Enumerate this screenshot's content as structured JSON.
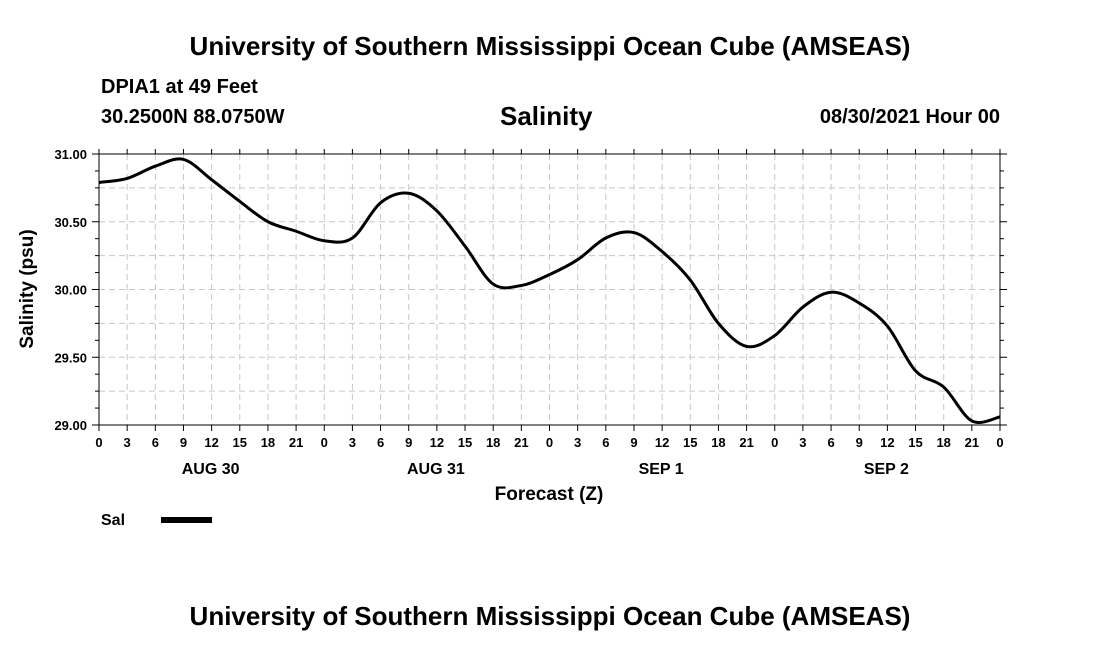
{
  "header": {
    "title": "University of Southern Mississippi Ocean Cube (AMSEAS)",
    "station": "DPIA1 at 49 Feet",
    "coords": "30.2500N  88.0750W",
    "variable": "Salinity",
    "run_time": "08/30/2021 Hour 00"
  },
  "footer": {
    "title": "University of Southern Mississippi Ocean Cube (AMSEAS)"
  },
  "legend": {
    "label": "Sal"
  },
  "colors": {
    "line": "#000000",
    "grid": "#c8c8c8"
  },
  "chart_data": {
    "type": "line",
    "title": "Salinity",
    "xlabel": "Forecast (Z)",
    "ylabel": "Salinity (psu)",
    "ylim": [
      29.0,
      31.0
    ],
    "yticks": [
      "29.00",
      "29.50",
      "30.00",
      "30.50",
      "31.00"
    ],
    "xlim_hours": [
      0,
      96
    ],
    "xticks_hours": [
      0,
      3,
      6,
      9,
      12,
      15,
      18,
      21,
      24,
      27,
      30,
      33,
      36,
      39,
      42,
      45,
      48,
      51,
      54,
      57,
      60,
      63,
      66,
      69,
      72,
      75,
      78,
      81,
      84,
      87,
      90,
      93,
      96
    ],
    "xtick_labels": [
      "0",
      "3",
      "6",
      "9",
      "12",
      "15",
      "18",
      "21",
      "0",
      "3",
      "6",
      "9",
      "12",
      "15",
      "18",
      "21",
      "0",
      "3",
      "6",
      "9",
      "12",
      "15",
      "18",
      "21",
      "0",
      "3",
      "6",
      "9",
      "12",
      "15",
      "18",
      "21",
      "0"
    ],
    "day_labels": [
      {
        "label": "AUG 30",
        "hour": 12
      },
      {
        "label": "AUG 31",
        "hour": 36
      },
      {
        "label": "SEP 1",
        "hour": 60
      },
      {
        "label": "SEP 2",
        "hour": 84
      }
    ],
    "grid": true,
    "series": [
      {
        "name": "Sal",
        "x": [
          0,
          3,
          6,
          9,
          12,
          15,
          18,
          21,
          24,
          27,
          30,
          33,
          36,
          39,
          42,
          45,
          48,
          51,
          54,
          57,
          60,
          63,
          66,
          69,
          72,
          75,
          78,
          81,
          84,
          87,
          90,
          93,
          96
        ],
        "values": [
          30.79,
          30.82,
          30.91,
          30.96,
          30.81,
          30.65,
          30.5,
          30.43,
          30.36,
          30.38,
          30.64,
          30.71,
          30.58,
          30.32,
          30.04,
          30.03,
          30.11,
          30.22,
          30.38,
          30.42,
          30.28,
          30.07,
          29.75,
          29.58,
          29.66,
          29.87,
          29.98,
          29.9,
          29.73,
          29.4,
          29.28,
          29.03,
          29.06
        ]
      }
    ]
  }
}
